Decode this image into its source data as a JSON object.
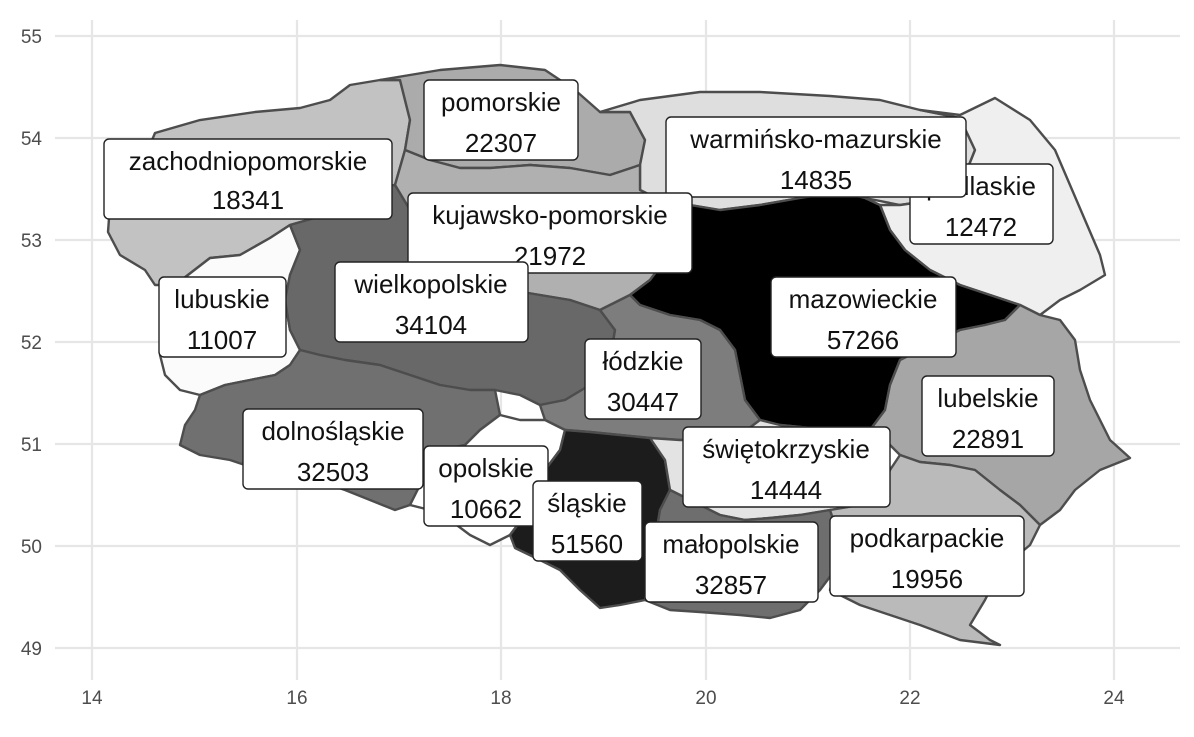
{
  "map": {
    "x_axis": {
      "ticks": [
        "14",
        "16",
        "18",
        "20",
        "22",
        "24"
      ]
    },
    "y_axis": {
      "ticks": [
        "49",
        "50",
        "51",
        "52",
        "53",
        "54",
        "55"
      ]
    },
    "scale": {
      "low_color": "#ffffff",
      "high_color": "#000000",
      "outline_color": "#4d4d4d"
    },
    "regions": [
      {
        "name": "zachodniopomorskie",
        "value": "18341",
        "shade": "#c2c2c2"
      },
      {
        "name": "pomorskie",
        "value": "22307",
        "shade": "#ababab"
      },
      {
        "name": "warmińsko-mazurskie",
        "value": "14835",
        "shade": "#dedede"
      },
      {
        "name": "podlaskie",
        "value": "12472",
        "shade": "#efefef"
      },
      {
        "name": "kujawsko-pomorskie",
        "value": "21972",
        "shade": "#b0b0b0"
      },
      {
        "name": "lubuskie",
        "value": "11007",
        "shade": "#fbfbfb"
      },
      {
        "name": "wielkopolskie",
        "value": "34104",
        "shade": "#686868"
      },
      {
        "name": "mazowieckie",
        "value": "57266",
        "shade": "#000000"
      },
      {
        "name": "łódzkie",
        "value": "30447",
        "shade": "#7d7d7d"
      },
      {
        "name": "lubelskie",
        "value": "22891",
        "shade": "#a6a6a6"
      },
      {
        "name": "dolnośląskie",
        "value": "32503",
        "shade": "#707070"
      },
      {
        "name": "opolskie",
        "value": "10662",
        "shade": "#ffffff"
      },
      {
        "name": "śląskie",
        "value": "51560",
        "shade": "#1c1c1c"
      },
      {
        "name": "świętokrzyskie",
        "value": "14444",
        "shade": "#e3e3e3"
      },
      {
        "name": "małopolskie",
        "value": "32857",
        "shade": "#6e6e6e"
      },
      {
        "name": "podkarpackie",
        "value": "19956",
        "shade": "#bababa"
      }
    ]
  }
}
